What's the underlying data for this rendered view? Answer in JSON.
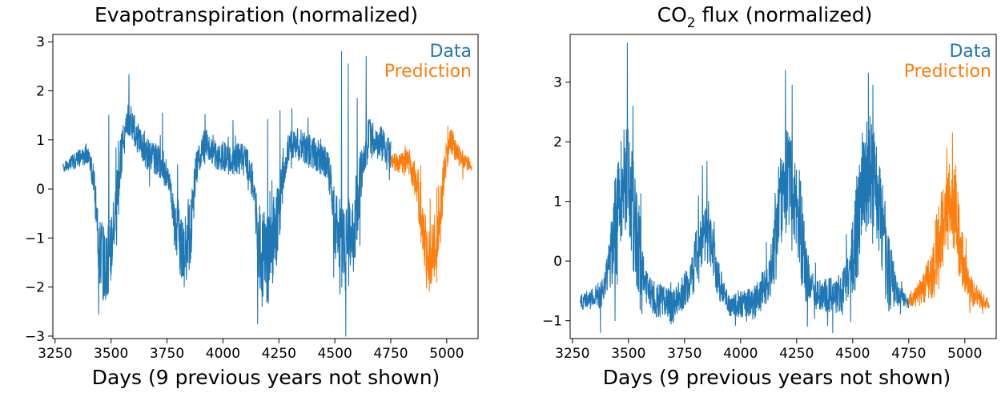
{
  "chart_data": [
    {
      "type": "line",
      "title": "Evapotranspiration (normalized)",
      "xlabel": "Days (9 previous years not shown)",
      "ylabel": "",
      "xlim": [
        3240,
        5140
      ],
      "ylim": [
        -3.05,
        3.15
      ],
      "xticks": [
        3250,
        3500,
        3750,
        4000,
        4250,
        4500,
        4750,
        5000
      ],
      "yticks": [
        -3,
        -2,
        -1,
        0,
        1,
        2,
        3
      ],
      "x_range": [
        3285,
        5110
      ],
      "grid": false,
      "legend_position": "top-right",
      "series": [
        {
          "name": "Data",
          "color": "#1f77b4",
          "x_start": 3285,
          "x_end": 4750,
          "baseline": [
            [
              3285,
              0.45
            ],
            [
              3330,
              0.55
            ],
            [
              3400,
              0.75
            ],
            [
              3425,
              0.05
            ],
            [
              3450,
              -1.3
            ],
            [
              3480,
              -1.7
            ],
            [
              3520,
              -0.6
            ],
            [
              3550,
              0.8
            ],
            [
              3580,
              1.45
            ],
            [
              3620,
              1.0
            ],
            [
              3660,
              0.7
            ],
            [
              3720,
              0.55
            ],
            [
              3760,
              0.2
            ],
            [
              3790,
              -0.8
            ],
            [
              3820,
              -1.3
            ],
            [
              3850,
              -0.9
            ],
            [
              3880,
              0.4
            ],
            [
              3920,
              0.95
            ],
            [
              3960,
              0.75
            ],
            [
              4020,
              0.6
            ],
            [
              4060,
              0.6
            ],
            [
              4100,
              0.65
            ],
            [
              4130,
              0.2
            ],
            [
              4160,
              -1.1
            ],
            [
              4200,
              -1.5
            ],
            [
              4240,
              -0.8
            ],
            [
              4270,
              0.4
            ],
            [
              4300,
              0.95
            ],
            [
              4340,
              0.9
            ],
            [
              4400,
              0.75
            ],
            [
              4450,
              0.65
            ],
            [
              4480,
              0.2
            ],
            [
              4510,
              -1.1
            ],
            [
              4540,
              -1.35
            ],
            [
              4580,
              -0.9
            ],
            [
              4610,
              0.1
            ],
            [
              4650,
              1.05
            ],
            [
              4700,
              0.95
            ],
            [
              4750,
              0.7
            ]
          ],
          "noise": [
            [
              3285,
              0.1
            ],
            [
              3420,
              0.25
            ],
            [
              3450,
              0.8
            ],
            [
              3530,
              0.7
            ],
            [
              3560,
              0.35
            ],
            [
              3780,
              0.35
            ],
            [
              3800,
              0.8
            ],
            [
              3860,
              0.8
            ],
            [
              3890,
              0.3
            ],
            [
              4140,
              0.35
            ],
            [
              4160,
              0.9
            ],
            [
              4250,
              0.9
            ],
            [
              4280,
              0.3
            ],
            [
              4490,
              0.4
            ],
            [
              4510,
              1.0
            ],
            [
              4600,
              0.9
            ],
            [
              4620,
              0.45
            ],
            [
              4750,
              0.3
            ]
          ],
          "spikes": [
            [
              3580,
              2.33
            ],
            [
              3490,
              1.5
            ],
            [
              3730,
              1.55
            ],
            [
              3920,
              1.52
            ],
            [
              4045,
              1.4
            ],
            [
              4200,
              1.42
            ],
            [
              4255,
              1.6
            ],
            [
              4380,
              1.45
            ],
            [
              4530,
              2.8
            ],
            [
              4560,
              2.55
            ],
            [
              4640,
              2.7
            ],
            [
              4600,
              1.85
            ],
            [
              3445,
              -2.55
            ],
            [
              4155,
              -2.75
            ],
            [
              4175,
              -2.4
            ],
            [
              4495,
              -1.8
            ],
            [
              3815,
              -1.8
            ]
          ]
        },
        {
          "name": "Prediction",
          "color": "#ff7f0e",
          "x_start": 4750,
          "x_end": 5110,
          "baseline": [
            [
              4750,
              0.55
            ],
            [
              4800,
              0.55
            ],
            [
              4840,
              0.5
            ],
            [
              4870,
              0.0
            ],
            [
              4890,
              -0.8
            ],
            [
              4920,
              -1.4
            ],
            [
              4950,
              -1.2
            ],
            [
              4975,
              -0.4
            ],
            [
              4995,
              0.55
            ],
            [
              5020,
              1.0
            ],
            [
              5050,
              0.7
            ],
            [
              5080,
              0.55
            ],
            [
              5110,
              0.48
            ]
          ],
          "noise": [
            [
              4750,
              0.15
            ],
            [
              4860,
              0.35
            ],
            [
              4880,
              0.6
            ],
            [
              4980,
              0.6
            ],
            [
              5000,
              0.3
            ],
            [
              5110,
              0.12
            ]
          ],
          "spikes": [
            [
              4910,
              -2.02
            ],
            [
              5005,
              1.28
            ],
            [
              4815,
              0.88
            ],
            [
              4955,
              -1.9
            ],
            [
              5030,
              1.1
            ]
          ]
        }
      ]
    },
    {
      "type": "line",
      "title": "CO",
      "title_subscript": "2",
      "title_suffix": " flux (normalized)",
      "xlabel": "Days (9 previous years not shown)",
      "ylabel": "",
      "xlim": [
        3240,
        5140
      ],
      "ylim": [
        -1.3,
        3.8
      ],
      "xticks": [
        3250,
        3500,
        3750,
        4000,
        4250,
        4500,
        4750,
        5000
      ],
      "yticks": [
        -1,
        0,
        1,
        2,
        3
      ],
      "x_range": [
        3285,
        5110
      ],
      "grid": false,
      "legend_position": "top-right",
      "series": [
        {
          "name": "Data",
          "color": "#1f77b4",
          "x_start": 3285,
          "x_end": 4750,
          "baseline": [
            [
              3285,
              -0.7
            ],
            [
              3380,
              -0.55
            ],
            [
              3420,
              0.0
            ],
            [
              3460,
              1.0
            ],
            [
              3490,
              1.5
            ],
            [
              3520,
              0.8
            ],
            [
              3560,
              -0.3
            ],
            [
              3600,
              -0.6
            ],
            [
              3700,
              -0.8
            ],
            [
              3780,
              -0.3
            ],
            [
              3820,
              0.3
            ],
            [
              3860,
              0.5
            ],
            [
              3900,
              -0.3
            ],
            [
              3950,
              -0.75
            ],
            [
              4060,
              -0.7
            ],
            [
              4130,
              -0.3
            ],
            [
              4170,
              0.8
            ],
            [
              4210,
              1.5
            ],
            [
              4250,
              1.0
            ],
            [
              4290,
              -0.2
            ],
            [
              4340,
              -0.6
            ],
            [
              4450,
              -0.55
            ],
            [
              4500,
              0.0
            ],
            [
              4540,
              1.2
            ],
            [
              4580,
              1.6
            ],
            [
              4620,
              0.8
            ],
            [
              4660,
              -0.2
            ],
            [
              4700,
              -0.55
            ],
            [
              4750,
              -0.7
            ]
          ],
          "noise": [
            [
              3285,
              0.12
            ],
            [
              3400,
              0.25
            ],
            [
              3440,
              0.9
            ],
            [
              3540,
              1.0
            ],
            [
              3580,
              0.3
            ],
            [
              3780,
              0.3
            ],
            [
              3810,
              0.6
            ],
            [
              3880,
              0.5
            ],
            [
              3930,
              0.15
            ],
            [
              4130,
              0.35
            ],
            [
              4160,
              0.9
            ],
            [
              4270,
              0.9
            ],
            [
              4310,
              0.25
            ],
            [
              4480,
              0.35
            ],
            [
              4520,
              1.0
            ],
            [
              4650,
              0.8
            ],
            [
              4700,
              0.2
            ],
            [
              4750,
              0.1
            ]
          ],
          "spikes": [
            [
              3495,
              3.65
            ],
            [
              3520,
              2.6
            ],
            [
              3850,
              1.67
            ],
            [
              3830,
              1.6
            ],
            [
              4200,
              3.2
            ],
            [
              4230,
              2.95
            ],
            [
              4570,
              3.15
            ],
            [
              4590,
              2.95
            ],
            [
              3375,
              -1.2
            ],
            [
              3440,
              -1.0
            ]
          ]
        },
        {
          "name": "Prediction",
          "color": "#ff7f0e",
          "x_start": 4750,
          "x_end": 5110,
          "baseline": [
            [
              4750,
              -0.65
            ],
            [
              4800,
              -0.55
            ],
            [
              4850,
              -0.2
            ],
            [
              4890,
              0.4
            ],
            [
              4930,
              0.95
            ],
            [
              4960,
              0.8
            ],
            [
              4990,
              0.0
            ],
            [
              5030,
              -0.5
            ],
            [
              5070,
              -0.65
            ],
            [
              5110,
              -0.75
            ]
          ],
          "noise": [
            [
              4750,
              0.1
            ],
            [
              4840,
              0.35
            ],
            [
              4880,
              0.7
            ],
            [
              4970,
              0.7
            ],
            [
              5010,
              0.3
            ],
            [
              5110,
              0.08
            ]
          ],
          "spikes": [
            [
              4945,
              2.15
            ],
            [
              4920,
              1.9
            ],
            [
              5080,
              -0.88
            ],
            [
              4960,
              1.6
            ]
          ]
        }
      ]
    }
  ]
}
